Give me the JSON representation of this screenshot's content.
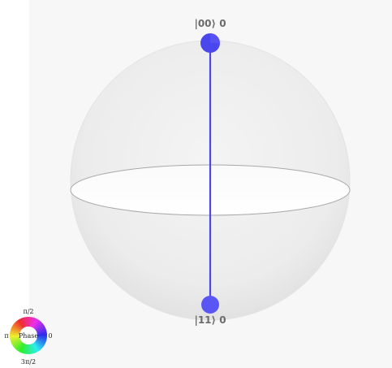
{
  "states": {
    "top": {
      "label": "|00⟩ 0"
    },
    "bottom": {
      "label": "|11⟩ 0"
    }
  },
  "phase_wheel": {
    "center_label": "Phase",
    "top_label": "π/2",
    "left_label": "π",
    "right_label": "0",
    "bottom_label": "3π/2"
  },
  "colors": {
    "state_vector": "#4b47ee",
    "sphere_fill": "#ebebeb",
    "equator_fill": "#ffffff",
    "background": "#f7f7f7"
  }
}
